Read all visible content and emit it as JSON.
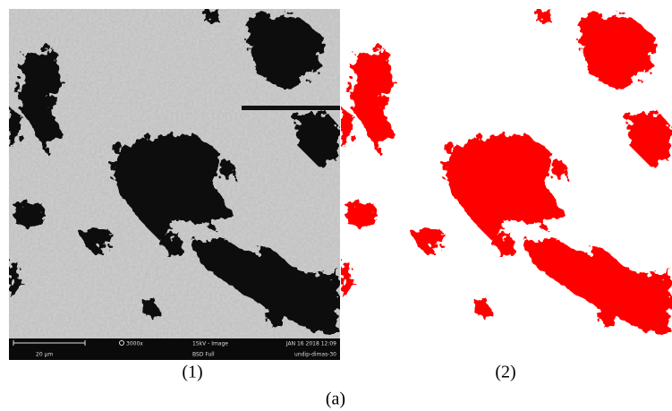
{
  "panels": [
    {
      "caption": "(1)",
      "info": {
        "magnification": "3000x",
        "mode": "15kV - Image",
        "date": "JAN 16 2018 12:09",
        "scale": "20 µm",
        "detector": "BSD Full",
        "sample": "undip-dimas-30"
      }
    },
    {
      "caption": "(2)"
    }
  ],
  "figure_caption": "(a)"
}
